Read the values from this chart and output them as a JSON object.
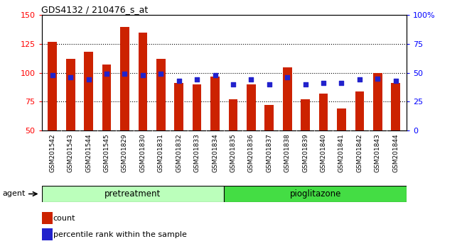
{
  "title": "GDS4132 / 210476_s_at",
  "categories": [
    "GSM201542",
    "GSM201543",
    "GSM201544",
    "GSM201545",
    "GSM201829",
    "GSM201830",
    "GSM201831",
    "GSM201832",
    "GSM201833",
    "GSM201834",
    "GSM201835",
    "GSM201836",
    "GSM201837",
    "GSM201838",
    "GSM201839",
    "GSM201840",
    "GSM201841",
    "GSM201842",
    "GSM201843",
    "GSM201844"
  ],
  "counts": [
    127,
    112,
    118,
    107,
    140,
    135,
    112,
    91,
    90,
    97,
    77,
    90,
    72,
    105,
    77,
    82,
    69,
    84,
    100,
    91
  ],
  "percentile_ranks": [
    48,
    46,
    44,
    49,
    49,
    48,
    49,
    43,
    44,
    48,
    40,
    44,
    40,
    46,
    40,
    41,
    41,
    44,
    45,
    43
  ],
  "bar_color": "#cc2200",
  "dot_color": "#2222cc",
  "ylim_left": [
    50,
    150
  ],
  "ylim_right": [
    0,
    100
  ],
  "yticks_left": [
    50,
    75,
    100,
    125,
    150
  ],
  "yticks_right": [
    0,
    25,
    50,
    75,
    100
  ],
  "ytick_labels_right": [
    "0",
    "25",
    "50",
    "75",
    "100%"
  ],
  "pretreatment_label": "pretreatment",
  "pioglitazone_label": "pioglitazone",
  "agent_label": "agent",
  "legend_count_label": "count",
  "legend_percentile_label": "percentile rank within the sample",
  "bar_width": 0.5,
  "pretreatment_count": 10,
  "pioglitazone_count": 10,
  "pretreatment_color": "#bbffbb",
  "pioglitazone_color": "#44dd44",
  "xtick_bg_color": "#cccccc",
  "plot_bg_color": "#ffffff"
}
